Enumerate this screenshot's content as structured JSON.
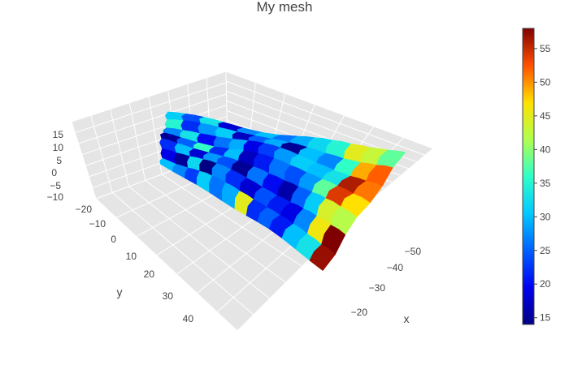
{
  "chart_data": {
    "type": "mesh3d",
    "title": "My mesh",
    "xlabel": "x",
    "ylabel": "y",
    "zlabel": "",
    "x_ticks": [
      "−20",
      "−30",
      "−40",
      "−50"
    ],
    "y_ticks": [
      "−20",
      "−10",
      "0",
      "10",
      "20",
      "30",
      "40"
    ],
    "z_ticks": [
      "15",
      "10",
      "5",
      "0",
      "−5",
      "−10"
    ],
    "colorbar": {
      "min": 14,
      "max": 58,
      "ticks": [
        "15",
        "20",
        "25",
        "30",
        "35",
        "40",
        "45",
        "50",
        "55"
      ],
      "colorscale": "Jet"
    },
    "patches": [
      {
        "row": 0,
        "col": 0,
        "value": 31
      },
      {
        "row": 0,
        "col": 1,
        "value": 24
      },
      {
        "row": 0,
        "col": 2,
        "value": 33
      },
      {
        "row": 0,
        "col": 3,
        "value": 18
      },
      {
        "row": 0,
        "col": 4,
        "value": 27
      },
      {
        "row": 0,
        "col": 5,
        "value": 30
      },
      {
        "row": 0,
        "col": 6,
        "value": 26
      },
      {
        "row": 0,
        "col": 7,
        "value": 29
      },
      {
        "row": 0,
        "col": 8,
        "value": 32
      },
      {
        "row": 0,
        "col": 9,
        "value": 35
      },
      {
        "row": 0,
        "col": 10,
        "value": 45
      },
      {
        "row": 0,
        "col": 11,
        "value": 43
      },
      {
        "row": 0,
        "col": 12,
        "value": 38
      },
      {
        "row": 1,
        "col": 0,
        "value": 35
      },
      {
        "row": 1,
        "col": 1,
        "value": 22
      },
      {
        "row": 1,
        "col": 2,
        "value": 28
      },
      {
        "row": 1,
        "col": 3,
        "value": 31
      },
      {
        "row": 1,
        "col": 4,
        "value": 17
      },
      {
        "row": 1,
        "col": 5,
        "value": 25
      },
      {
        "row": 1,
        "col": 6,
        "value": 29
      },
      {
        "row": 1,
        "col": 7,
        "value": 15
      },
      {
        "row": 1,
        "col": 8,
        "value": 30
      },
      {
        "row": 1,
        "col": 9,
        "value": 27
      },
      {
        "row": 1,
        "col": 10,
        "value": 36
      },
      {
        "row": 1,
        "col": 11,
        "value": 49
      },
      {
        "row": 1,
        "col": 12,
        "value": 52
      },
      {
        "row": 2,
        "col": 0,
        "value": 27
      },
      {
        "row": 2,
        "col": 1,
        "value": 33
      },
      {
        "row": 2,
        "col": 2,
        "value": 20
      },
      {
        "row": 2,
        "col": 3,
        "value": 26
      },
      {
        "row": 2,
        "col": 4,
        "value": 29
      },
      {
        "row": 2,
        "col": 5,
        "value": 19
      },
      {
        "row": 2,
        "col": 6,
        "value": 23
      },
      {
        "row": 2,
        "col": 7,
        "value": 28
      },
      {
        "row": 2,
        "col": 8,
        "value": 31
      },
      {
        "row": 2,
        "col": 9,
        "value": 30
      },
      {
        "row": 2,
        "col": 10,
        "value": 33
      },
      {
        "row": 2,
        "col": 11,
        "value": 56
      },
      {
        "row": 2,
        "col": 12,
        "value": 51
      },
      {
        "row": 3,
        "col": 0,
        "value": 15
      },
      {
        "row": 3,
        "col": 1,
        "value": 25
      },
      {
        "row": 3,
        "col": 2,
        "value": 36
      },
      {
        "row": 3,
        "col": 3,
        "value": 22
      },
      {
        "row": 3,
        "col": 4,
        "value": 30
      },
      {
        "row": 3,
        "col": 5,
        "value": 17
      },
      {
        "row": 3,
        "col": 6,
        "value": 21
      },
      {
        "row": 3,
        "col": 7,
        "value": 26
      },
      {
        "row": 3,
        "col": 8,
        "value": 24
      },
      {
        "row": 3,
        "col": 9,
        "value": 28
      },
      {
        "row": 3,
        "col": 10,
        "value": 38
      },
      {
        "row": 3,
        "col": 11,
        "value": 54
      },
      {
        "row": 3,
        "col": 12,
        "value": 47
      },
      {
        "row": 4,
        "col": 0,
        "value": 22
      },
      {
        "row": 4,
        "col": 1,
        "value": 30
      },
      {
        "row": 4,
        "col": 2,
        "value": 18
      },
      {
        "row": 4,
        "col": 3,
        "value": 28
      },
      {
        "row": 4,
        "col": 4,
        "value": 24
      },
      {
        "row": 4,
        "col": 5,
        "value": 15
      },
      {
        "row": 4,
        "col": 6,
        "value": 26
      },
      {
        "row": 4,
        "col": 7,
        "value": 20
      },
      {
        "row": 4,
        "col": 8,
        "value": 16
      },
      {
        "row": 4,
        "col": 9,
        "value": 25
      },
      {
        "row": 4,
        "col": 10,
        "value": 31
      },
      {
        "row": 4,
        "col": 11,
        "value": 44
      },
      {
        "row": 4,
        "col": 12,
        "value": 42
      },
      {
        "row": 5,
        "col": 0,
        "value": 19
      },
      {
        "row": 5,
        "col": 1,
        "value": 15
      },
      {
        "row": 5,
        "col": 2,
        "value": 32
      },
      {
        "row": 5,
        "col": 3,
        "value": 14
      },
      {
        "row": 5,
        "col": 4,
        "value": 27
      },
      {
        "row": 5,
        "col": 5,
        "value": 22
      },
      {
        "row": 5,
        "col": 6,
        "value": 18
      },
      {
        "row": 5,
        "col": 7,
        "value": 24
      },
      {
        "row": 5,
        "col": 8,
        "value": 21
      },
      {
        "row": 5,
        "col": 9,
        "value": 19
      },
      {
        "row": 5,
        "col": 10,
        "value": 27
      },
      {
        "row": 5,
        "col": 11,
        "value": 46
      },
      {
        "row": 5,
        "col": 12,
        "value": 58
      },
      {
        "row": 6,
        "col": 0,
        "value": 30
      },
      {
        "row": 6,
        "col": 1,
        "value": 27
      },
      {
        "row": 6,
        "col": 2,
        "value": 23
      },
      {
        "row": 6,
        "col": 3,
        "value": 31
      },
      {
        "row": 6,
        "col": 4,
        "value": 26
      },
      {
        "row": 6,
        "col": 5,
        "value": 29
      },
      {
        "row": 6,
        "col": 6,
        "value": 45
      },
      {
        "row": 6,
        "col": 7,
        "value": 22
      },
      {
        "row": 6,
        "col": 8,
        "value": 25
      },
      {
        "row": 6,
        "col": 9,
        "value": 21
      },
      {
        "row": 6,
        "col": 10,
        "value": 30
      },
      {
        "row": 6,
        "col": 11,
        "value": 33
      },
      {
        "row": 6,
        "col": 12,
        "value": 57
      }
    ]
  }
}
